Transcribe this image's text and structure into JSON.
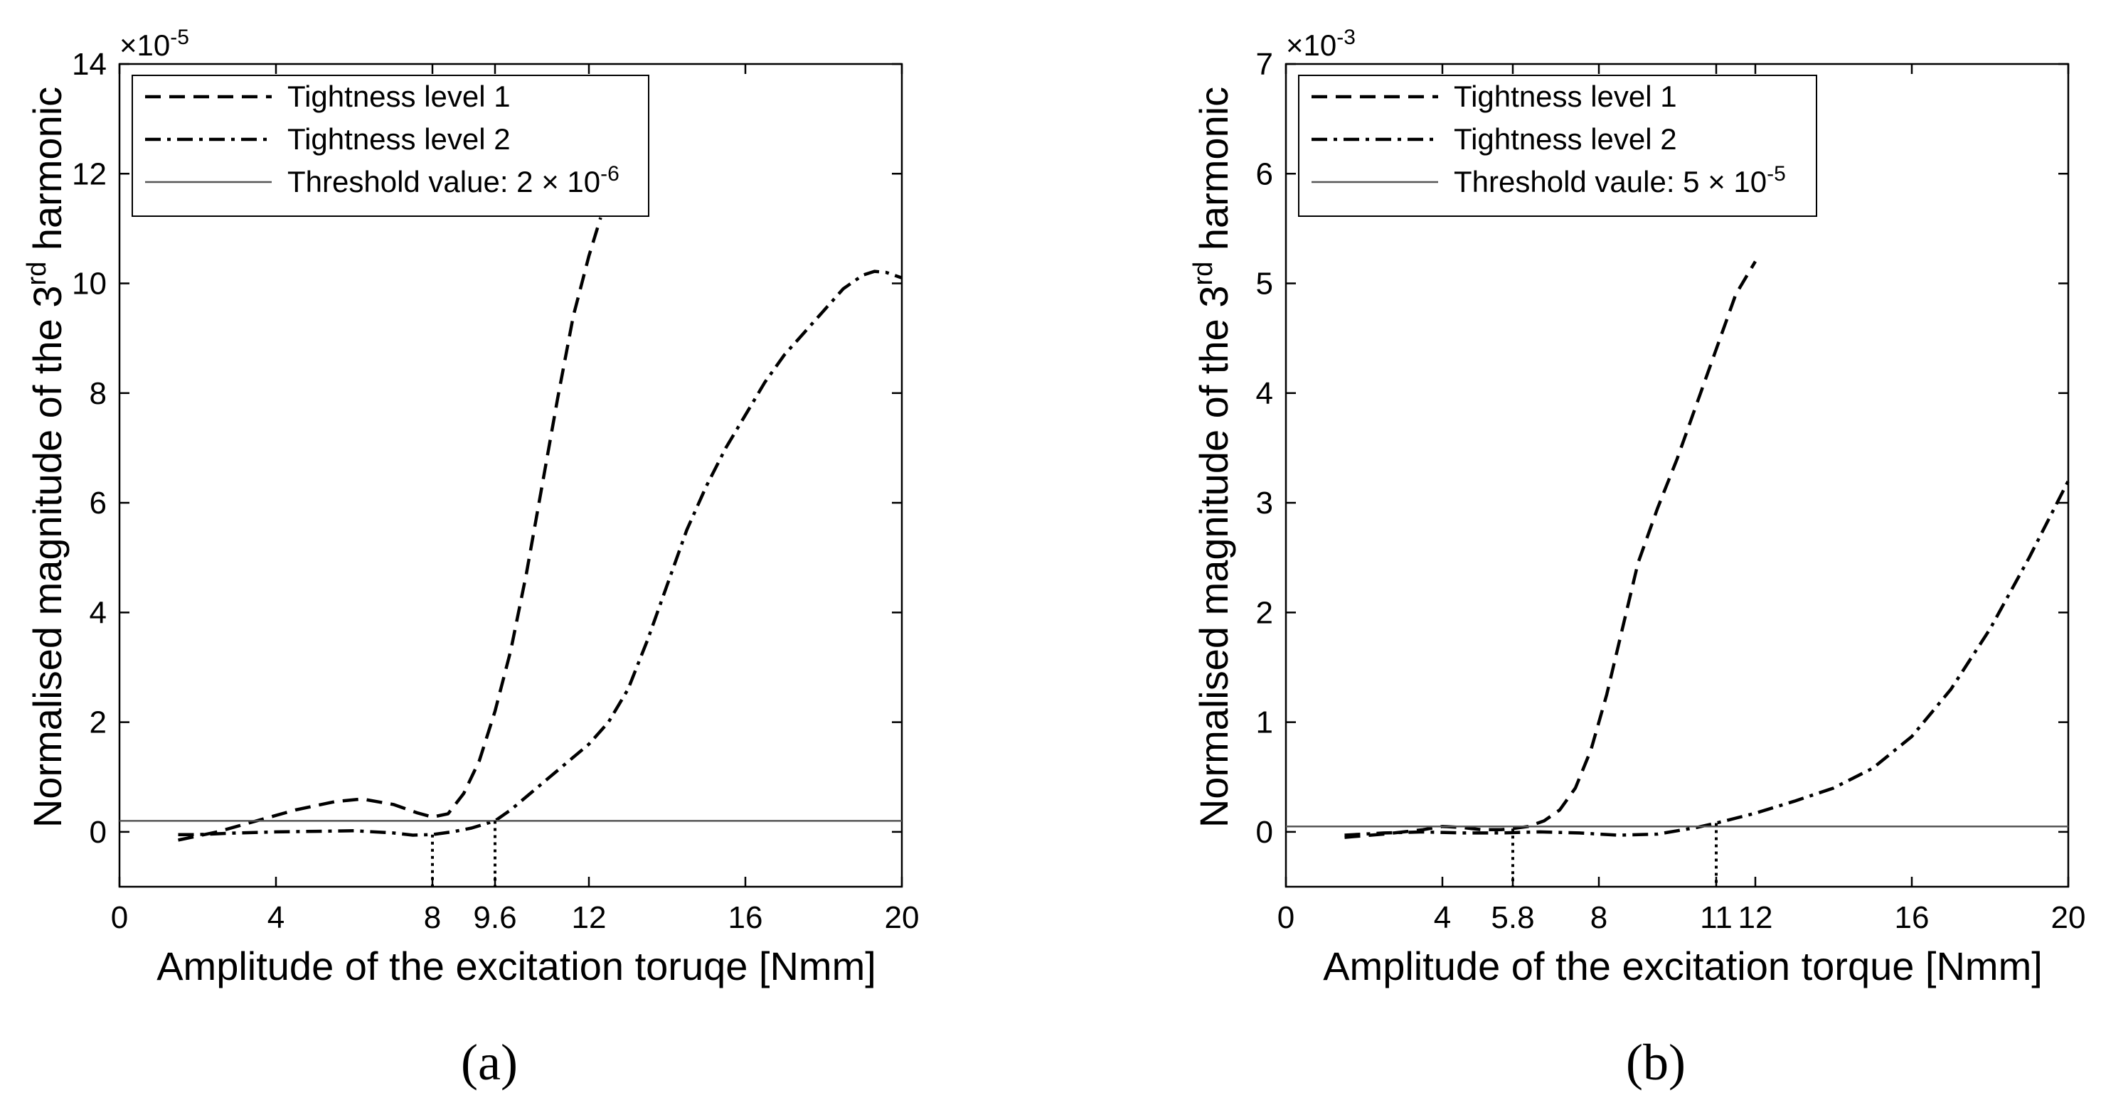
{
  "colors": {
    "curve": "#000000",
    "threshold": "#555555",
    "axis": "#000000",
    "background": "#ffffff"
  },
  "chart_data": [
    {
      "type": "line",
      "panel_label": "(a)",
      "title": "",
      "xlabel": "Amplitude of the excitation toruqe [Nmm]",
      "ylabel_prefix": "Normalised magnitude of the 3",
      "ylabel_sup": "rd",
      "ylabel_suffix": " harmonic",
      "exponent_base": "×10",
      "exponent_power": "-5",
      "xlim": [
        0,
        20
      ],
      "ylim": [
        -1,
        14
      ],
      "xticks": [
        0,
        4,
        8,
        9.6,
        12,
        16,
        20
      ],
      "xtick_labels": [
        "0",
        "4",
        "8",
        "9.6",
        "12",
        "16",
        "20"
      ],
      "yticks": [
        0,
        2,
        4,
        6,
        8,
        10,
        12,
        14
      ],
      "ytick_labels": [
        "0",
        "2",
        "4",
        "6",
        "8",
        "10",
        "12",
        "14"
      ],
      "grid": false,
      "legend_position": "top-left",
      "series": [
        {
          "name": "Tightness level 1",
          "style": "dashed",
          "x": [
            1.5,
            2.5,
            3.5,
            4.5,
            5.5,
            6.2,
            7,
            7.6,
            8,
            8.4,
            8.8,
            9.2,
            9.6,
            10,
            10.4,
            10.8,
            11.2,
            11.6,
            12,
            12.3
          ],
          "y": [
            -0.15,
            0.0,
            0.2,
            0.4,
            0.55,
            0.6,
            0.5,
            0.35,
            0.27,
            0.33,
            0.7,
            1.3,
            2.2,
            3.3,
            4.7,
            6.3,
            7.9,
            9.4,
            10.5,
            11.2
          ]
        },
        {
          "name": "Tightness level 2",
          "style": "dashdot",
          "x": [
            1.5,
            2,
            3,
            4,
            5,
            6,
            7,
            7.5,
            8,
            8.5,
            9,
            9.6,
            10,
            10.5,
            11,
            11.5,
            12,
            12.5,
            13,
            13.5,
            14,
            14.5,
            15,
            15.5,
            16,
            16.5,
            17,
            17.5,
            18,
            18.5,
            19,
            19.3,
            19.6,
            20
          ],
          "y": [
            -0.05,
            -0.05,
            -0.02,
            0.0,
            0.01,
            0.02,
            -0.02,
            -0.06,
            -0.05,
            0.0,
            0.07,
            0.2,
            0.4,
            0.7,
            1.0,
            1.3,
            1.6,
            2.0,
            2.6,
            3.5,
            4.5,
            5.5,
            6.3,
            7.0,
            7.6,
            8.2,
            8.7,
            9.1,
            9.5,
            9.9,
            10.15,
            10.22,
            10.2,
            10.1
          ]
        },
        {
          "name": "Threshold value: 2 × 10",
          "name_sup": "-6",
          "style": "solid-thin",
          "x": [
            0,
            20
          ],
          "y": [
            0.2,
            0.2
          ]
        }
      ],
      "markers": [
        {
          "x": 8,
          "y": -0.05
        },
        {
          "x": 9.6,
          "y": 0.2
        }
      ]
    },
    {
      "type": "line",
      "panel_label": "(b)",
      "title": "",
      "xlabel": "Amplitude of the excitation torque [Nmm]",
      "ylabel_prefix": "Normalised magnitude of the 3",
      "ylabel_sup": "rd",
      "ylabel_suffix": " harmonic",
      "exponent_base": "×10",
      "exponent_power": "-3",
      "xlim": [
        0,
        20
      ],
      "ylim": [
        -0.5,
        7
      ],
      "xticks": [
        0,
        4,
        5.8,
        8,
        11,
        12,
        16,
        20
      ],
      "xtick_labels": [
        "0",
        "4",
        "5.8",
        "8",
        "11",
        "12",
        "16",
        "20"
      ],
      "yticks": [
        0,
        1,
        2,
        3,
        4,
        5,
        6,
        7
      ],
      "ytick_labels": [
        "0",
        "1",
        "2",
        "3",
        "4",
        "5",
        "6",
        "7"
      ],
      "grid": false,
      "legend_position": "top-left",
      "series": [
        {
          "name": "Tightness level 1",
          "style": "dashed",
          "x": [
            1.5,
            2.5,
            3.5,
            4,
            4.5,
            5,
            5.5,
            5.8,
            6.2,
            6.6,
            7,
            7.4,
            7.8,
            8.2,
            8.6,
            9,
            9.5,
            10,
            10.5,
            11,
            11.5,
            12
          ],
          "y": [
            -0.05,
            -0.02,
            0.02,
            0.05,
            0.04,
            0.02,
            0.02,
            0.03,
            0.05,
            0.1,
            0.2,
            0.4,
            0.75,
            1.25,
            1.85,
            2.45,
            2.95,
            3.4,
            3.9,
            4.4,
            4.9,
            5.2
          ]
        },
        {
          "name": "Tightness level 2",
          "style": "dashdot",
          "x": [
            1.5,
            2.5,
            3.5,
            4.5,
            5.5,
            6.5,
            7.5,
            8.5,
            9.5,
            10.5,
            11,
            12,
            13,
            14,
            15,
            16,
            17,
            18,
            19,
            20
          ],
          "y": [
            -0.03,
            -0.01,
            0.0,
            -0.01,
            -0.01,
            0.0,
            -0.01,
            -0.03,
            -0.02,
            0.04,
            0.08,
            0.17,
            0.28,
            0.4,
            0.58,
            0.87,
            1.3,
            1.85,
            2.5,
            3.2
          ]
        },
        {
          "name": "Threshold vaule: 5 × 10",
          "name_sup": "-5",
          "style": "solid-thin",
          "x": [
            0,
            20
          ],
          "y": [
            0.05,
            0.05
          ]
        }
      ],
      "markers": [
        {
          "x": 5.8,
          "y": 0.03
        },
        {
          "x": 11,
          "y": 0.08
        }
      ]
    }
  ]
}
